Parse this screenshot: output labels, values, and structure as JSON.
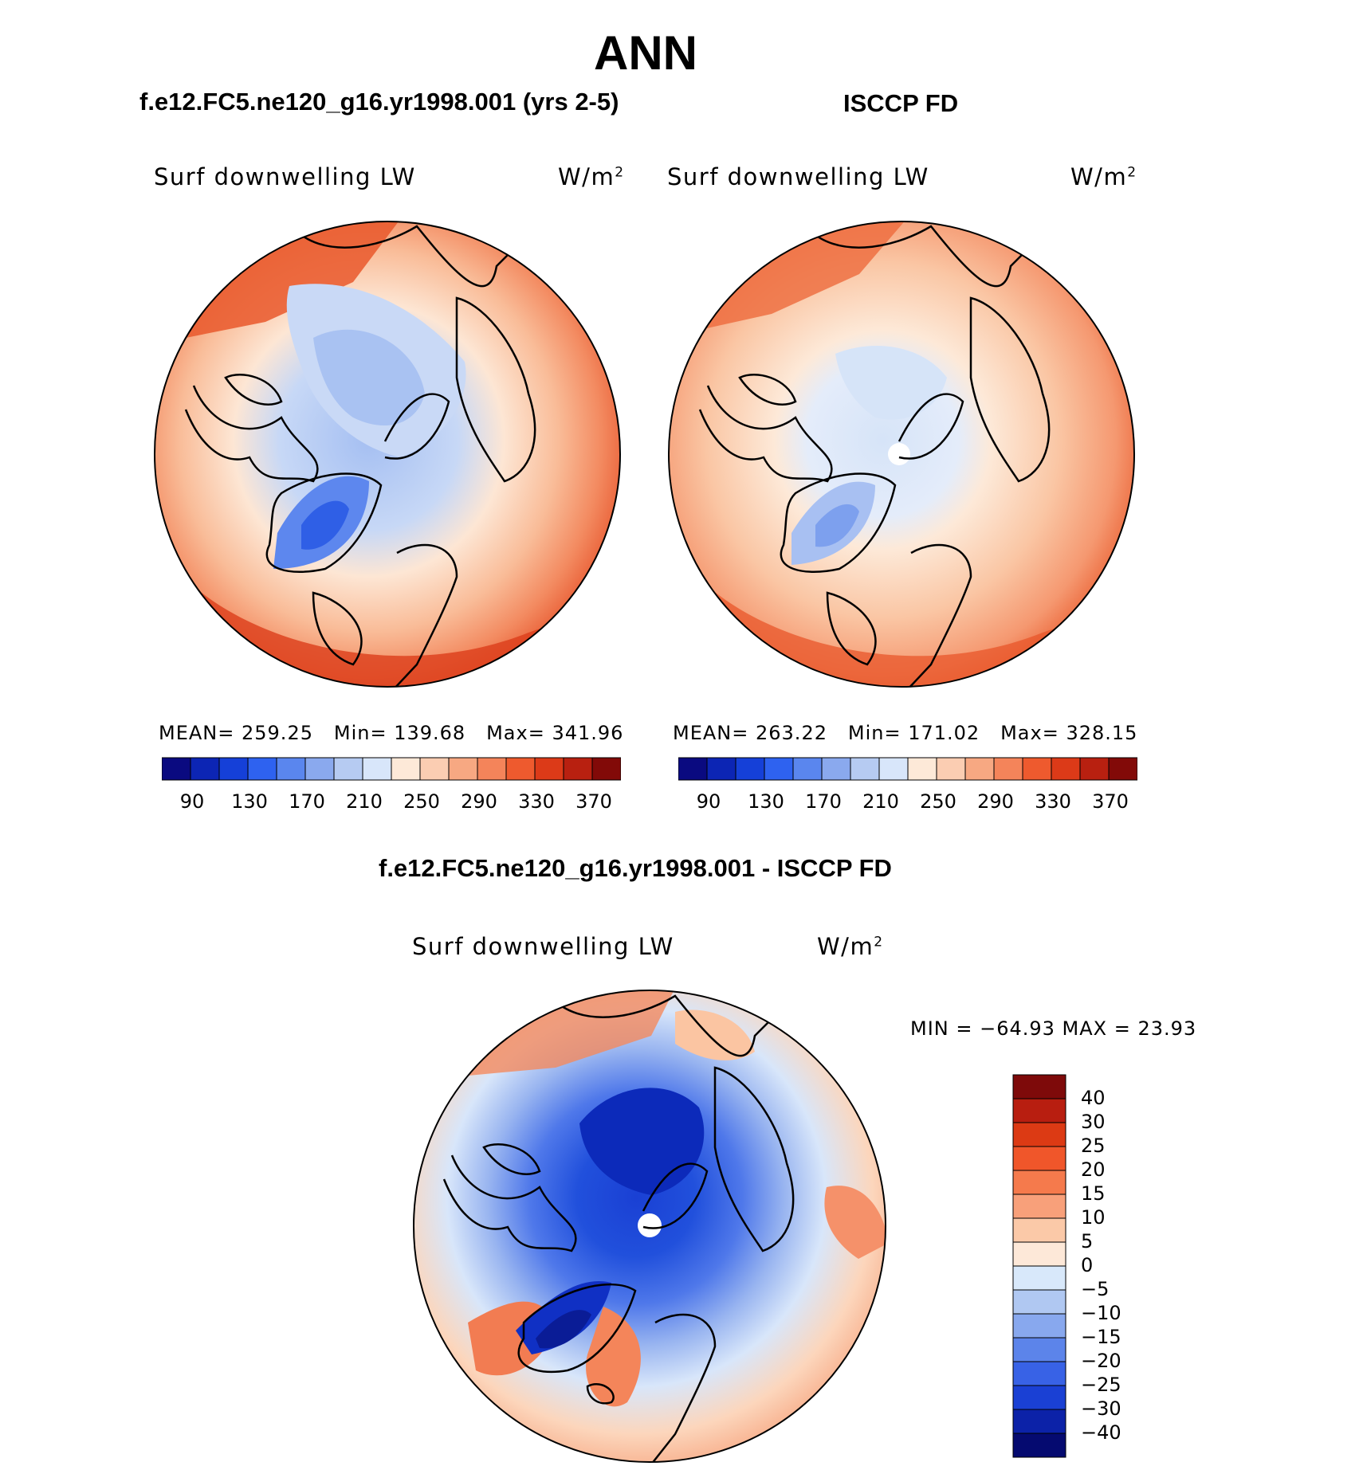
{
  "title": "ANN",
  "panels": [
    {
      "case": "f.e12.FC5.ne120_g16.yr1998.001 (yrs 2-5)",
      "variable": "Surf downwelling LW",
      "units": "W/m",
      "units_exp": "2",
      "mean_label": "MEAN=",
      "mean": "259.25",
      "min_label": "Min=",
      "min": "139.68",
      "max_label": "Max=",
      "max": "341.96"
    },
    {
      "case": "ISCCP FD",
      "variable": "Surf downwelling LW",
      "units": "W/m",
      "units_exp": "2",
      "mean_label": "MEAN=",
      "mean": "263.22",
      "min_label": "Min=",
      "min": "171.02",
      "max_label": "Max=",
      "max": "328.15"
    }
  ],
  "abs_colorbar": {
    "labels": [
      "90",
      "130",
      "170",
      "210",
      "250",
      "290",
      "330",
      "370"
    ],
    "colors": [
      "#0a0a80",
      "#0c25b4",
      "#1540d8",
      "#2e62f0",
      "#5a86ee",
      "#8aa9ee",
      "#b6cbf2",
      "#d8e6fa",
      "#fde9d8",
      "#fbcdb2",
      "#f7a882",
      "#f4845a",
      "#ee5a2e",
      "#dc3a18",
      "#b82010",
      "#820a08"
    ]
  },
  "diff": {
    "title": "f.e12.FC5.ne120_g16.yr1998.001 - ISCCP FD",
    "variable": "Surf downwelling LW",
    "units": "W/m",
    "units_exp": "2",
    "min_max": "MIN = −64.93 MAX =   23.93",
    "colorbar_labels": [
      "40",
      "30",
      "25",
      "20",
      "15",
      "10",
      "5",
      "0",
      "−5",
      "−10",
      "−15",
      "−20",
      "−25",
      "−30",
      "−40"
    ],
    "colorbar_colors": [
      "#7e0a0a",
      "#b81e10",
      "#dc3a14",
      "#f0562a",
      "#f57a4c",
      "#f8a07a",
      "#fbc9a8",
      "#fde8d8",
      "#d8e8fa",
      "#b0c8f2",
      "#88a8ee",
      "#5c84ea",
      "#3862e6",
      "#1a40d4",
      "#0c22a8",
      "#050a70"
    ]
  }
}
